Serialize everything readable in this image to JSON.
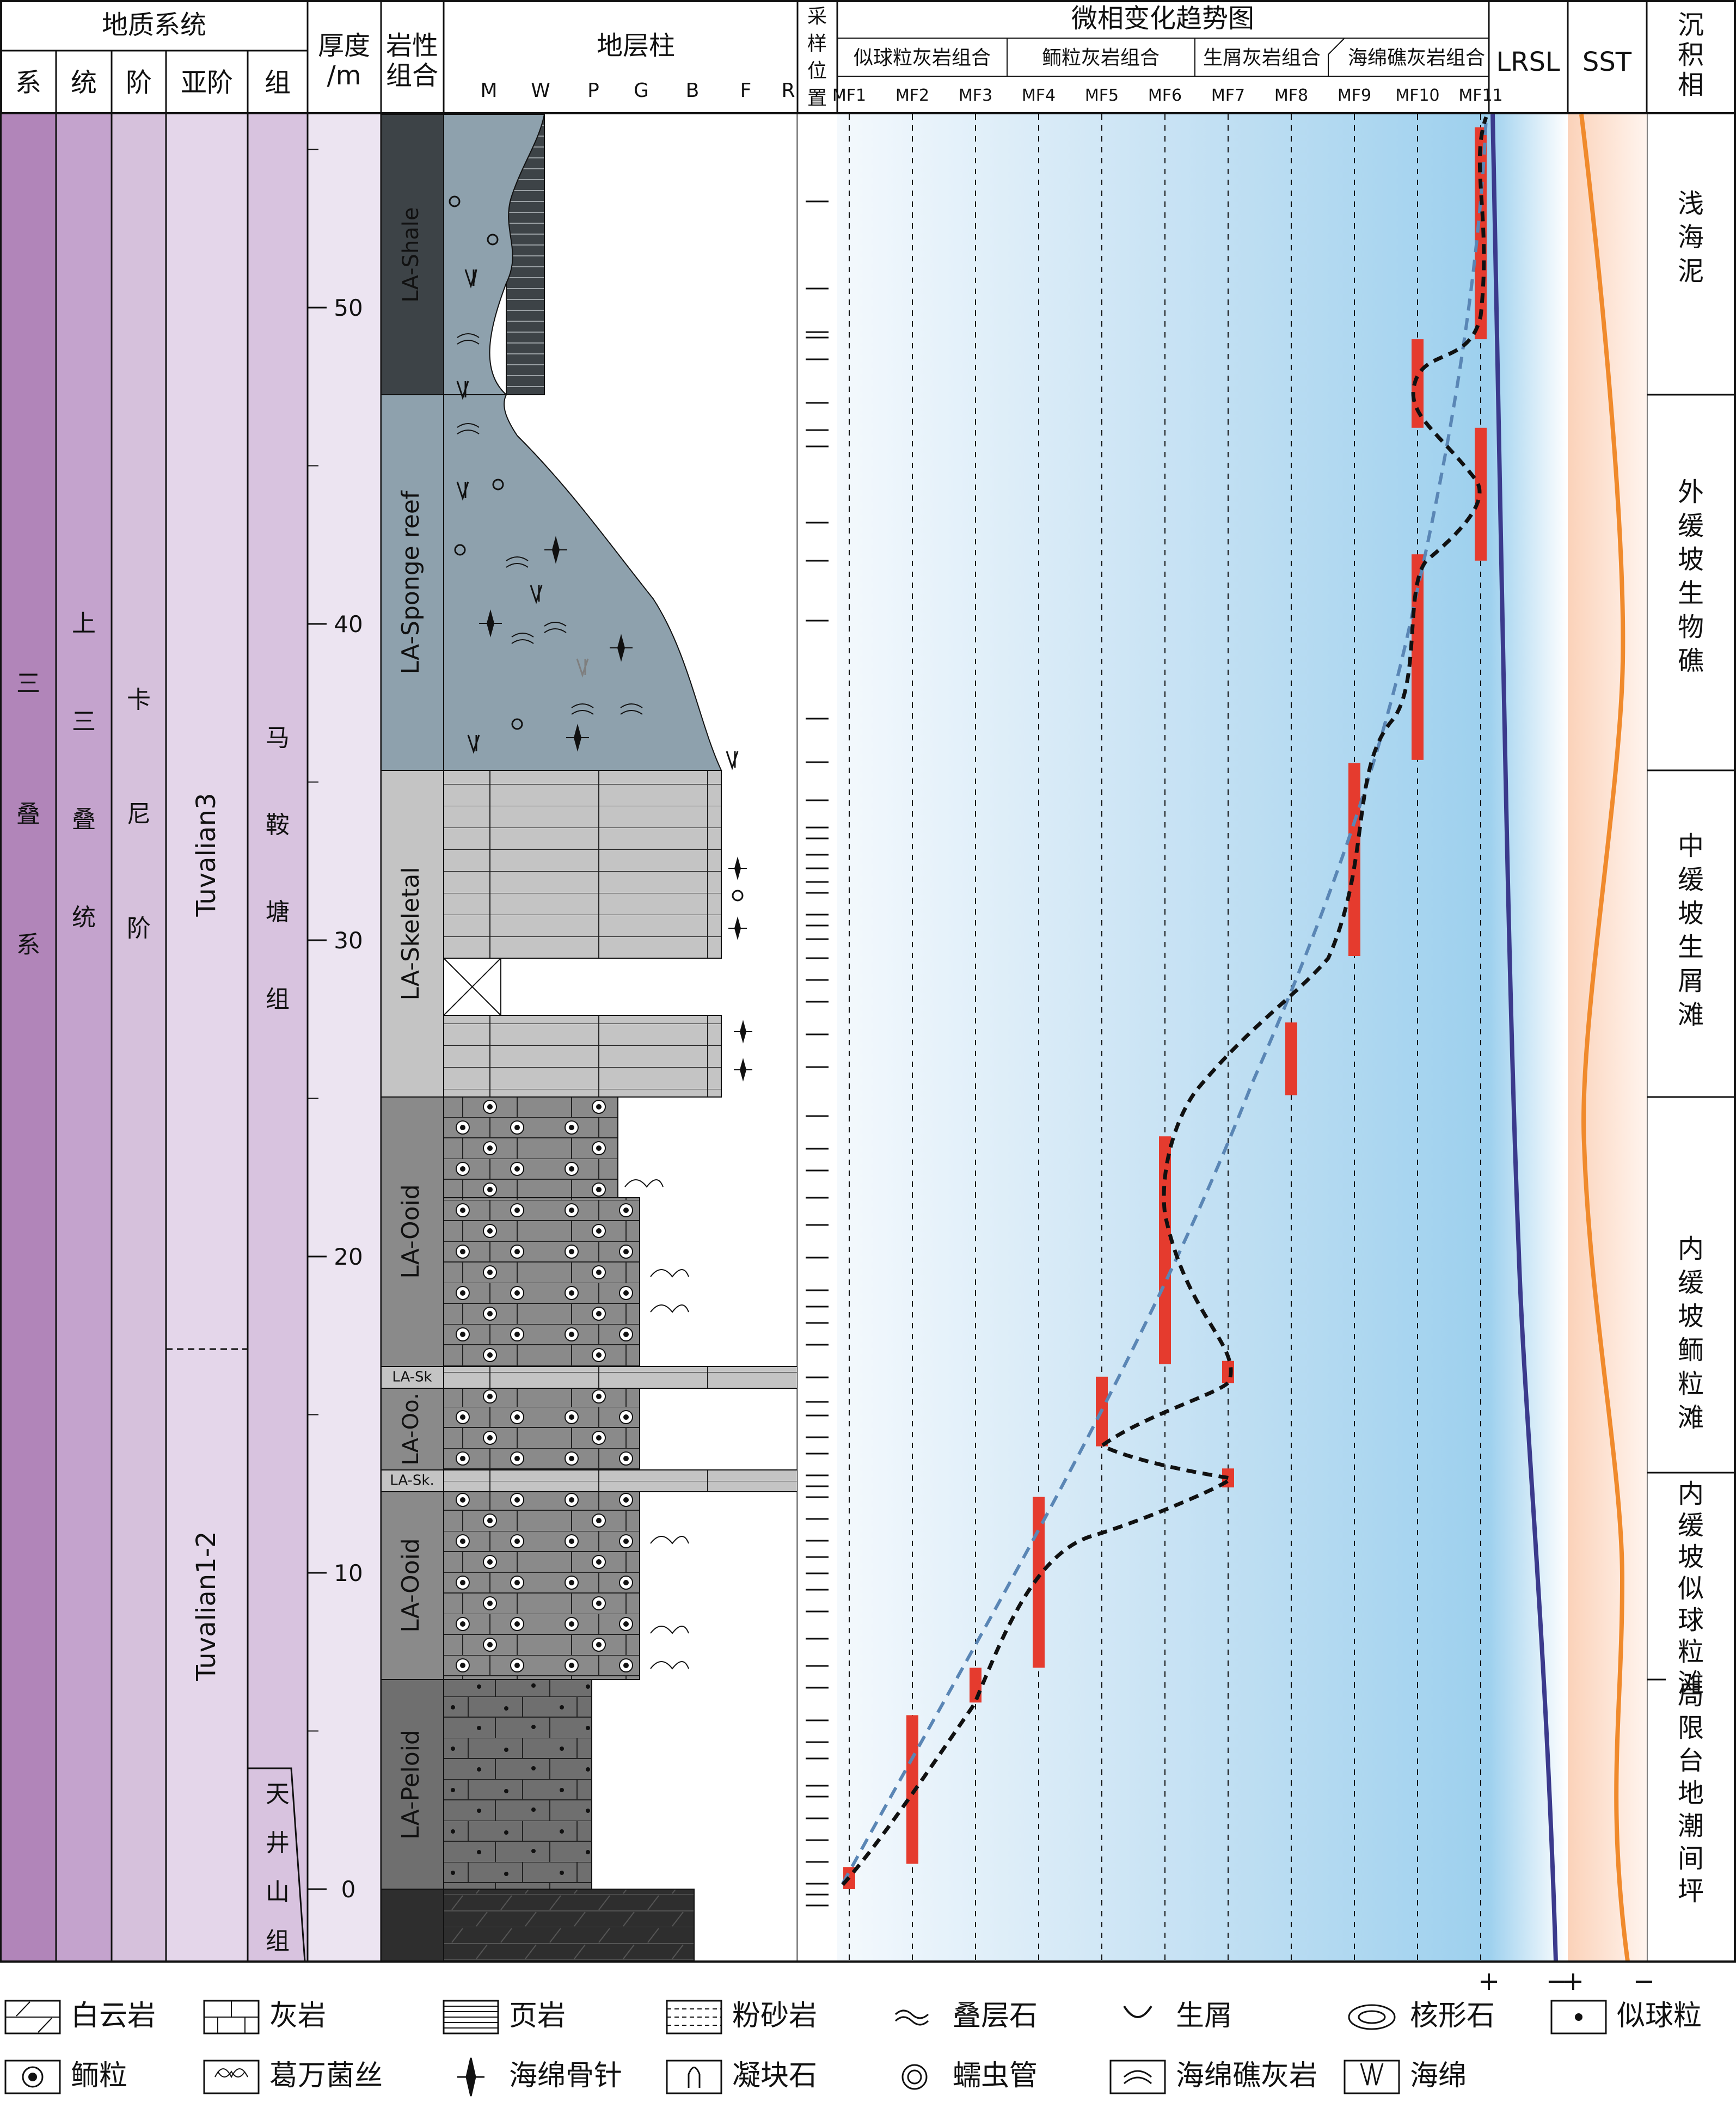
{
  "headers": {
    "geo_system": "地质系统",
    "col_xi": "系",
    "col_tong": "统",
    "col_jie": "阶",
    "col_yajie": "亚阶",
    "col_zu": "组",
    "thickness_line1": "厚度",
    "thickness_line2": "/m",
    "lithology_line1": "岩性",
    "lithology_line2": "组合",
    "column": "地层柱",
    "texture_scale": [
      "M",
      "W",
      "P",
      "G",
      "B",
      "F",
      "R"
    ],
    "sampling_chars": [
      "采",
      "样",
      "位",
      "置"
    ],
    "microfacies_title": "微相变化趋势图",
    "groups": [
      "似球粒灰岩组合",
      "鲕粒灰岩组合",
      "生屑灰岩组合",
      "海绵礁灰岩组合"
    ],
    "mf_codes": [
      "MF1",
      "MF2",
      "MF3",
      "MF4",
      "MF5",
      "MF6",
      "MF7",
      "MF8",
      "MF9",
      "MF10",
      "MF11"
    ],
    "lrsl": "LRSL",
    "sst": "SST",
    "sed_facies_chars": [
      "沉",
      "积",
      "相"
    ]
  },
  "geo_units": {
    "xi_chars": [
      "三",
      "叠",
      "系"
    ],
    "tong_chars": [
      "上",
      "三",
      "叠",
      "统"
    ],
    "jie_chars": [
      "卡",
      "尼",
      "阶"
    ],
    "yajie_upper": "Tuvalian3",
    "yajie_lower": "Tuvalian1-2",
    "zu_upper_chars": [
      "马",
      "鞍",
      "塘",
      "组"
    ],
    "zu_lower_chars": [
      "天",
      "井",
      "山",
      "组"
    ]
  },
  "depth_ticks": [
    "0",
    "10",
    "20",
    "30",
    "40",
    "50"
  ],
  "lith_units": [
    "LA-Peloid",
    "LA-Ooid",
    "LA-Sk.",
    "LA-Oo.",
    "LA-Sk",
    "LA-Ooid",
    "LA-Skeletal",
    "LA-Sponge reef",
    "LA-Shale"
  ],
  "sed_facies": [
    {
      "chars": [
        "局",
        "限",
        "台",
        "地",
        "潮",
        "间",
        "坪"
      ]
    },
    {
      "chars": [
        "内",
        "缓",
        "坡",
        "似",
        "球",
        "粒",
        "滩"
      ]
    },
    {
      "chars": [
        "内",
        "缓",
        "坡",
        "鲕",
        "粒",
        "滩"
      ]
    },
    {
      "chars": [
        "中",
        "缓",
        "坡",
        "生",
        "屑",
        "滩"
      ]
    },
    {
      "chars": [
        "外",
        "缓",
        "坡",
        "生",
        "物",
        "礁"
      ]
    },
    {
      "chars": [
        "浅",
        "海",
        "泥"
      ]
    }
  ],
  "curve_signs": {
    "lrsl_plus": "+",
    "lrsl_minus": "−",
    "sst_plus": "+",
    "sst_minus": "−"
  },
  "legend": [
    {
      "label": "白云岩",
      "icon": "dolomite-icon"
    },
    {
      "label": "灰岩",
      "icon": "limestone-icon"
    },
    {
      "label": "页岩",
      "icon": "shale-icon"
    },
    {
      "label": "粉砂岩",
      "icon": "siltstone-icon"
    },
    {
      "label": "叠层石",
      "icon": "stromatolite-icon"
    },
    {
      "label": "生屑",
      "icon": "bioclast-icon"
    },
    {
      "label": "核形石",
      "icon": "oncoid-icon"
    },
    {
      "label": "似球粒",
      "icon": "peloid-icon"
    },
    {
      "label": "鲕粒",
      "icon": "ooid-icon"
    },
    {
      "label": "葛万菌丝",
      "icon": "girvanella-icon"
    },
    {
      "label": "海绵骨针",
      "icon": "sponge-spicule-icon"
    },
    {
      "label": "凝块石",
      "icon": "thrombolite-icon"
    },
    {
      "label": "蠕虫管",
      "icon": "worm-tube-icon"
    },
    {
      "label": "海绵礁灰岩",
      "icon": "sponge-reef-limestone-icon"
    },
    {
      "label": "海绵",
      "icon": "sponge-icon"
    }
  ],
  "colors": {
    "xi": "#b185b9",
    "tong": "#c4a3cd",
    "jie": "#d6c1dc",
    "yajie": "#e4d6ea",
    "zu": "#d8c3df",
    "thickness_bg": "#ece4f1",
    "dolomite": "#2e2e2e",
    "peloid": "#6f6f6f",
    "ooid": "#8a8a8a",
    "skeletal": "#c4c4c4",
    "sponge_reef": "#8ea1ad",
    "shale": "#3d4347",
    "mf_bar": "#e53b2e",
    "lrsl": "#3b3a8c",
    "sst": "#f08a2c",
    "trend_dash": "#5a86b5"
  },
  "microfacies_ranges": [
    {
      "mf": 1,
      "from_m": 0.0,
      "to_m": 0.7
    },
    {
      "mf": 2,
      "from_m": 0.8,
      "to_m": 5.5
    },
    {
      "mf": 3,
      "from_m": 5.9,
      "to_m": 7.0
    },
    {
      "mf": 4,
      "from_m": 7.0,
      "to_m": 12.4
    },
    {
      "mf": 7,
      "from_m": 12.7,
      "to_m": 13.3
    },
    {
      "mf": 5,
      "from_m": 14.0,
      "to_m": 16.2
    },
    {
      "mf": 7,
      "from_m": 16.0,
      "to_m": 16.7
    },
    {
      "mf": 6,
      "from_m": 16.6,
      "to_m": 23.8
    },
    {
      "mf": 8,
      "from_m": 25.1,
      "to_m": 27.4
    },
    {
      "mf": 9,
      "from_m": 29.5,
      "to_m": 35.6
    },
    {
      "mf": 10,
      "from_m": 35.7,
      "to_m": 42.2
    },
    {
      "mf": 11,
      "from_m": 42.0,
      "to_m": 46.2
    },
    {
      "mf": 10,
      "from_m": 46.2,
      "to_m": 49.0
    },
    {
      "mf": 11,
      "from_m": 49.0,
      "to_m": 55.7
    }
  ]
}
